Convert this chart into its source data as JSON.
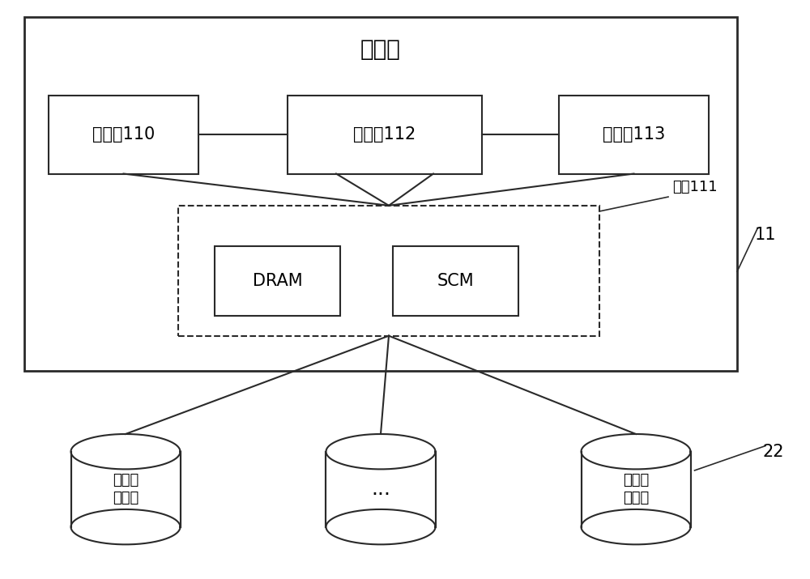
{
  "bg_color": "#ffffff",
  "line_color": "#2a2a2a",
  "title": "控制器",
  "label_11": "11",
  "label_22": "22",
  "jieka110_label": "接口卡110",
  "processor_label": "处理器112",
  "jieka113_label": "接口卡113",
  "memory_label": "内存111",
  "dram_label": "DRAM",
  "scm_label": "SCM",
  "storage_label": "持久化\n存储器",
  "ellipsis_label": "...",
  "font_size_title": 20,
  "font_size_label": 15,
  "font_size_small": 13,
  "font_size_ellipsis": 18
}
